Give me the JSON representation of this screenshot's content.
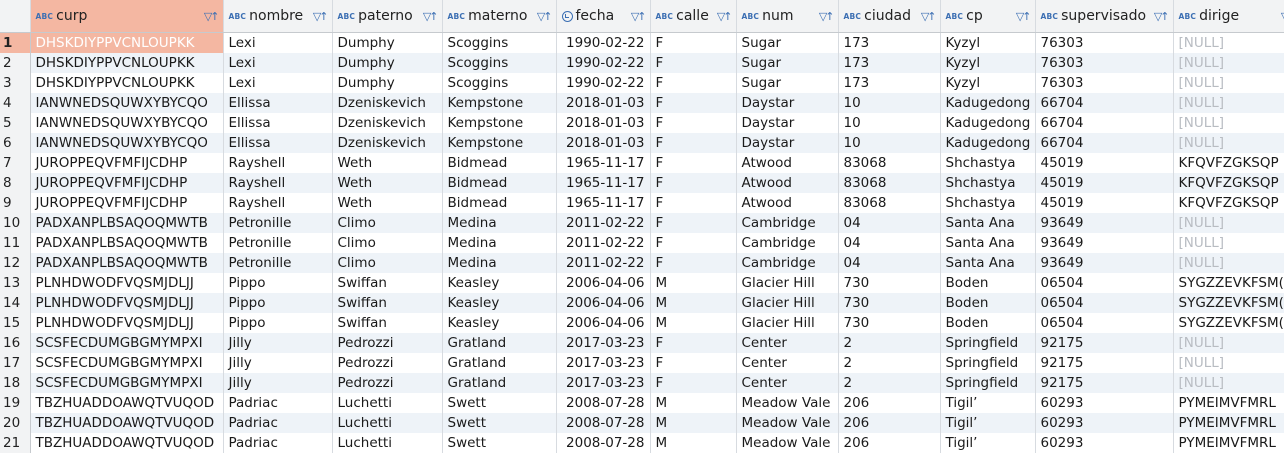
{
  "columns": [
    {
      "name": "curp",
      "type_icon": "abc-type-icon"
    },
    {
      "name": "nombre",
      "type_icon": "abc-type-icon"
    },
    {
      "name": "paterno",
      "type_icon": "abc-type-icon"
    },
    {
      "name": "materno",
      "type_icon": "abc-type-icon"
    },
    {
      "name": "fecha",
      "type_icon": "date-type-icon"
    },
    {
      "name": "calle",
      "type_icon": "abc-type-icon"
    },
    {
      "name": "num",
      "type_icon": "abc-type-icon"
    },
    {
      "name": "ciudad",
      "type_icon": "abc-type-icon"
    },
    {
      "name": "cp",
      "type_icon": "abc-type-icon"
    },
    {
      "name": "supervisado",
      "type_icon": "abc-type-icon"
    },
    {
      "name": "dirige",
      "type_icon": "abc-type-icon"
    }
  ],
  "type_icon_text": "ABC",
  "filter_icon_text": "▽↑",
  "selected_color": "#f4b7a2",
  "rows": [
    {
      "n": "1",
      "curp": "DHSKDIYPPVCNLOUPKK",
      "nombre": "Lexi",
      "paterno": "Dumphy",
      "materno": "Scoggins",
      "fecha": "1990-02-22",
      "calle": "F",
      "num": "Sugar",
      "ciudad": "173",
      "cp": "Kyzyl",
      "supervisado": "76303",
      "dirige": "[NULL]"
    },
    {
      "n": "2",
      "curp": "DHSKDIYPPVCNLOUPKK",
      "nombre": "Lexi",
      "paterno": "Dumphy",
      "materno": "Scoggins",
      "fecha": "1990-02-22",
      "calle": "F",
      "num": "Sugar",
      "ciudad": "173",
      "cp": "Kyzyl",
      "supervisado": "76303",
      "dirige": "[NULL]"
    },
    {
      "n": "3",
      "curp": "DHSKDIYPPVCNLOUPKK",
      "nombre": "Lexi",
      "paterno": "Dumphy",
      "materno": "Scoggins",
      "fecha": "1990-02-22",
      "calle": "F",
      "num": "Sugar",
      "ciudad": "173",
      "cp": "Kyzyl",
      "supervisado": "76303",
      "dirige": "[NULL]"
    },
    {
      "n": "4",
      "curp": "IANWNEDSQUWXYBYCQO",
      "nombre": "Ellissa",
      "paterno": "Dzeniskevich",
      "materno": "Kempstone",
      "fecha": "2018-01-03",
      "calle": "F",
      "num": "Daystar",
      "ciudad": "10",
      "cp": "Kadugedong",
      "supervisado": "66704",
      "dirige": "[NULL]"
    },
    {
      "n": "5",
      "curp": "IANWNEDSQUWXYBYCQO",
      "nombre": "Ellissa",
      "paterno": "Dzeniskevich",
      "materno": "Kempstone",
      "fecha": "2018-01-03",
      "calle": "F",
      "num": "Daystar",
      "ciudad": "10",
      "cp": "Kadugedong",
      "supervisado": "66704",
      "dirige": "[NULL]"
    },
    {
      "n": "6",
      "curp": "IANWNEDSQUWXYBYCQO",
      "nombre": "Ellissa",
      "paterno": "Dzeniskevich",
      "materno": "Kempstone",
      "fecha": "2018-01-03",
      "calle": "F",
      "num": "Daystar",
      "ciudad": "10",
      "cp": "Kadugedong",
      "supervisado": "66704",
      "dirige": "[NULL]"
    },
    {
      "n": "7",
      "curp": "JUROPPEQVFMFIJCDHP",
      "nombre": "Rayshell",
      "paterno": "Weth",
      "materno": "Bidmead",
      "fecha": "1965-11-17",
      "calle": "F",
      "num": "Atwood",
      "ciudad": "83068",
      "cp": "Shchastya",
      "supervisado": "45019",
      "dirige": "KFQVFZGKSQP"
    },
    {
      "n": "8",
      "curp": "JUROPPEQVFMFIJCDHP",
      "nombre": "Rayshell",
      "paterno": "Weth",
      "materno": "Bidmead",
      "fecha": "1965-11-17",
      "calle": "F",
      "num": "Atwood",
      "ciudad": "83068",
      "cp": "Shchastya",
      "supervisado": "45019",
      "dirige": "KFQVFZGKSQP"
    },
    {
      "n": "9",
      "curp": "JUROPPEQVFMFIJCDHP",
      "nombre": "Rayshell",
      "paterno": "Weth",
      "materno": "Bidmead",
      "fecha": "1965-11-17",
      "calle": "F",
      "num": "Atwood",
      "ciudad": "83068",
      "cp": "Shchastya",
      "supervisado": "45019",
      "dirige": "KFQVFZGKSQP"
    },
    {
      "n": "10",
      "curp": "PADXANPLBSAQOQMWTB",
      "nombre": "Petronille",
      "paterno": "Climo",
      "materno": "Medina",
      "fecha": "2011-02-22",
      "calle": "F",
      "num": "Cambridge",
      "ciudad": "04",
      "cp": "Santa Ana",
      "supervisado": "93649",
      "dirige": "[NULL]"
    },
    {
      "n": "11",
      "curp": "PADXANPLBSAQOQMWTB",
      "nombre": "Petronille",
      "paterno": "Climo",
      "materno": "Medina",
      "fecha": "2011-02-22",
      "calle": "F",
      "num": "Cambridge",
      "ciudad": "04",
      "cp": "Santa Ana",
      "supervisado": "93649",
      "dirige": "[NULL]"
    },
    {
      "n": "12",
      "curp": "PADXANPLBSAQOQMWTB",
      "nombre": "Petronille",
      "paterno": "Climo",
      "materno": "Medina",
      "fecha": "2011-02-22",
      "calle": "F",
      "num": "Cambridge",
      "ciudad": "04",
      "cp": "Santa Ana",
      "supervisado": "93649",
      "dirige": "[NULL]"
    },
    {
      "n": "13",
      "curp": "PLNHDWODFVQSMJDLJJ",
      "nombre": "Pippo",
      "paterno": "Swiffan",
      "materno": "Keasley",
      "fecha": "2006-04-06",
      "calle": "M",
      "num": "Glacier Hill",
      "ciudad": "730",
      "cp": "Boden",
      "supervisado": "06504",
      "dirige": "SYGZZEVKFSM("
    },
    {
      "n": "14",
      "curp": "PLNHDWODFVQSMJDLJJ",
      "nombre": "Pippo",
      "paterno": "Swiffan",
      "materno": "Keasley",
      "fecha": "2006-04-06",
      "calle": "M",
      "num": "Glacier Hill",
      "ciudad": "730",
      "cp": "Boden",
      "supervisado": "06504",
      "dirige": "SYGZZEVKFSM("
    },
    {
      "n": "15",
      "curp": "PLNHDWODFVQSMJDLJJ",
      "nombre": "Pippo",
      "paterno": "Swiffan",
      "materno": "Keasley",
      "fecha": "2006-04-06",
      "calle": "M",
      "num": "Glacier Hill",
      "ciudad": "730",
      "cp": "Boden",
      "supervisado": "06504",
      "dirige": "SYGZZEVKFSM("
    },
    {
      "n": "16",
      "curp": "SCSFECDUMGBGMYMPXI",
      "nombre": "Jilly",
      "paterno": "Pedrozzi",
      "materno": "Gratland",
      "fecha": "2017-03-23",
      "calle": "F",
      "num": "Center",
      "ciudad": "2",
      "cp": "Springfield",
      "supervisado": "92175",
      "dirige": "[NULL]"
    },
    {
      "n": "17",
      "curp": "SCSFECDUMGBGMYMPXI",
      "nombre": "Jilly",
      "paterno": "Pedrozzi",
      "materno": "Gratland",
      "fecha": "2017-03-23",
      "calle": "F",
      "num": "Center",
      "ciudad": "2",
      "cp": "Springfield",
      "supervisado": "92175",
      "dirige": "[NULL]"
    },
    {
      "n": "18",
      "curp": "SCSFECDUMGBGMYMPXI",
      "nombre": "Jilly",
      "paterno": "Pedrozzi",
      "materno": "Gratland",
      "fecha": "2017-03-23",
      "calle": "F",
      "num": "Center",
      "ciudad": "2",
      "cp": "Springfield",
      "supervisado": "92175",
      "dirige": "[NULL]"
    },
    {
      "n": "19",
      "curp": "TBZHUADDOAWQTVUQOD",
      "nombre": "Padriac",
      "paterno": "Luchetti",
      "materno": "Swett",
      "fecha": "2008-07-28",
      "calle": "M",
      "num": "Meadow Vale",
      "ciudad": "206",
      "cp": "Tigil’",
      "supervisado": "60293",
      "dirige": "PYMEIMVFMRL"
    },
    {
      "n": "20",
      "curp": "TBZHUADDOAWQTVUQOD",
      "nombre": "Padriac",
      "paterno": "Luchetti",
      "materno": "Swett",
      "fecha": "2008-07-28",
      "calle": "M",
      "num": "Meadow Vale",
      "ciudad": "206",
      "cp": "Tigil’",
      "supervisado": "60293",
      "dirige": "PYMEIMVFMRL"
    },
    {
      "n": "21",
      "curp": "TBZHUADDOAWQTVUQOD",
      "nombre": "Padriac",
      "paterno": "Luchetti",
      "materno": "Swett",
      "fecha": "2008-07-28",
      "calle": "M",
      "num": "Meadow Vale",
      "ciudad": "206",
      "cp": "Tigil’",
      "supervisado": "60293",
      "dirige": "PYMEIMVFMRL"
    }
  ]
}
